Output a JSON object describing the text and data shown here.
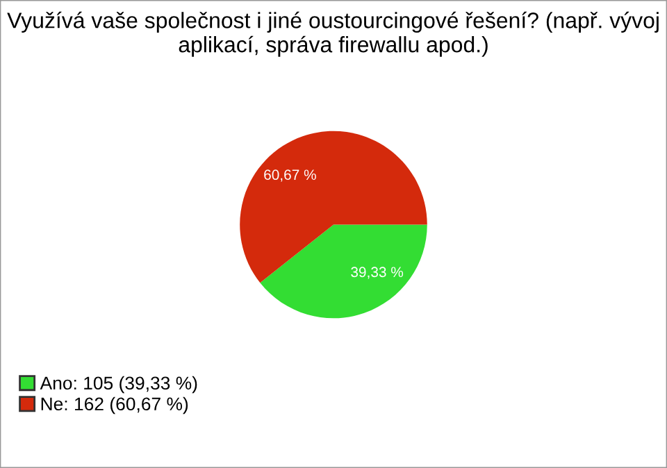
{
  "chart_data": {
    "type": "pie",
    "title": "Využívá vaše společnost i jiné oustourcingové řešení? (např. vývoj aplikací, správa firewallu apod.)",
    "categories": [
      "Ano: 105 (39,33 %)",
      "Ne: 162 (60,67 %)"
    ],
    "values": [
      39.33,
      60.67
    ],
    "colors": [
      "#33dd33",
      "#d42a0c"
    ],
    "value_labels": [
      "39,33 %",
      "60,67 %"
    ],
    "legend": "bottom left"
  }
}
